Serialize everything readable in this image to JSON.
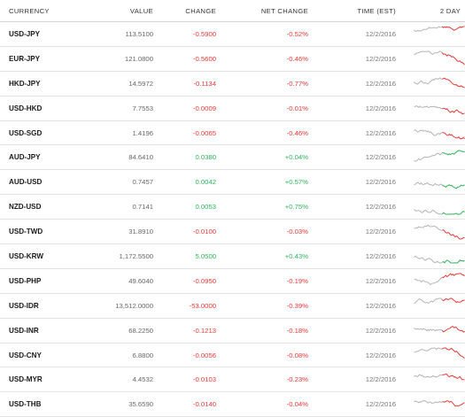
{
  "table": {
    "headers": {
      "currency": "CURRENCY",
      "value": "VALUE",
      "change": "CHANGE",
      "net_change": "NET CHANGE",
      "time": "TIME (EST)",
      "two_day": "2 DAY"
    },
    "rows": [
      {
        "currency": "USD-JPY",
        "value": "113.5100",
        "change": "-0.5900",
        "net_change": "-0.52%",
        "time": "12/2/2016",
        "direction": "down"
      },
      {
        "currency": "EUR-JPY",
        "value": "121.0800",
        "change": "-0.5600",
        "net_change": "-0.46%",
        "time": "12/2/2016",
        "direction": "down"
      },
      {
        "currency": "HKD-JPY",
        "value": "14.5972",
        "change": "-0.1134",
        "net_change": "-0.77%",
        "time": "12/2/2016",
        "direction": "down"
      },
      {
        "currency": "USD-HKD",
        "value": "7.7553",
        "change": "-0.0009",
        "net_change": "-0.01%",
        "time": "12/2/2016",
        "direction": "down"
      },
      {
        "currency": "USD-SGD",
        "value": "1.4196",
        "change": "-0.0065",
        "net_change": "-0.46%",
        "time": "12/2/2016",
        "direction": "down"
      },
      {
        "currency": "AUD-JPY",
        "value": "84.6410",
        "change": "0.0380",
        "net_change": "+0.04%",
        "time": "12/2/2016",
        "direction": "up"
      },
      {
        "currency": "AUD-USD",
        "value": "0.7457",
        "change": "0.0042",
        "net_change": "+0.57%",
        "time": "12/2/2016",
        "direction": "up"
      },
      {
        "currency": "NZD-USD",
        "value": "0.7141",
        "change": "0.0053",
        "net_change": "+0.75%",
        "time": "12/2/2016",
        "direction": "up"
      },
      {
        "currency": "USD-TWD",
        "value": "31.8910",
        "change": "-0.0100",
        "net_change": "-0.03%",
        "time": "12/2/2016",
        "direction": "down"
      },
      {
        "currency": "USD-KRW",
        "value": "1,172.5500",
        "change": "5.0500",
        "net_change": "+0.43%",
        "time": "12/2/2016",
        "direction": "up"
      },
      {
        "currency": "USD-PHP",
        "value": "49.6040",
        "change": "-0.0950",
        "net_change": "-0.19%",
        "time": "12/2/2016",
        "direction": "down"
      },
      {
        "currency": "USD-IDR",
        "value": "13,512.0000",
        "change": "-53.0000",
        "net_change": "-0.39%",
        "time": "12/2/2016",
        "direction": "down"
      },
      {
        "currency": "USD-INR",
        "value": "68.2250",
        "change": "-0.1213",
        "net_change": "-0.18%",
        "time": "12/2/2016",
        "direction": "down"
      },
      {
        "currency": "USD-CNY",
        "value": "6.8800",
        "change": "-0.0056",
        "net_change": "-0.08%",
        "time": "12/2/2016",
        "direction": "down"
      },
      {
        "currency": "USD-MYR",
        "value": "4.4532",
        "change": "-0.0103",
        "net_change": "-0.23%",
        "time": "12/2/2016",
        "direction": "down"
      },
      {
        "currency": "USD-THB",
        "value": "35.6590",
        "change": "-0.0140",
        "net_change": "-0.04%",
        "time": "12/2/2016",
        "direction": "down"
      }
    ]
  },
  "colors": {
    "negative": "#e53935",
    "positive": "#2fb35a",
    "sparkline_history": "#b5b5b5",
    "row_divider": "#e3e3e3"
  }
}
